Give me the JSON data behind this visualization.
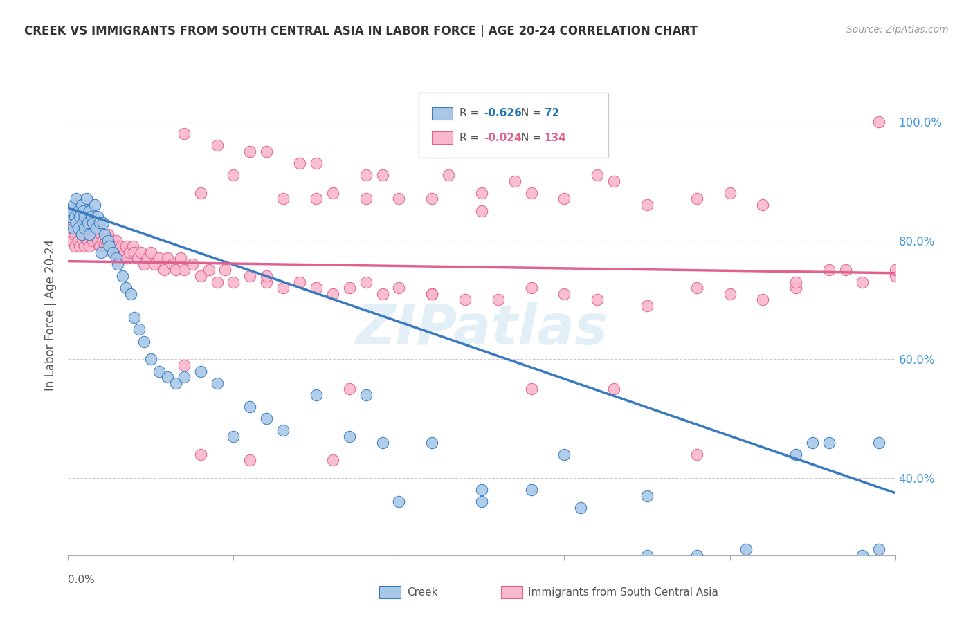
{
  "title": "CREEK VS IMMIGRANTS FROM SOUTH CENTRAL ASIA IN LABOR FORCE | AGE 20-24 CORRELATION CHART",
  "source": "Source: ZipAtlas.com",
  "ylabel": "In Labor Force | Age 20-24",
  "legend_creek_R": "-0.626",
  "legend_creek_N": "72",
  "legend_immig_R": "-0.024",
  "legend_immig_N": "134",
  "creek_color": "#a8c8e8",
  "immig_color": "#f9b8cc",
  "creek_line_color": "#3a7abf",
  "immig_line_color": "#e06090",
  "watermark": "ZIPatlas",
  "background_color": "#ffffff",
  "xlim": [
    0.0,
    0.5
  ],
  "ylim": [
    0.27,
    1.08
  ],
  "creek_x": [
    0.001,
    0.002,
    0.003,
    0.003,
    0.004,
    0.005,
    0.005,
    0.006,
    0.006,
    0.007,
    0.008,
    0.008,
    0.009,
    0.009,
    0.01,
    0.01,
    0.011,
    0.012,
    0.013,
    0.013,
    0.014,
    0.015,
    0.016,
    0.017,
    0.018,
    0.019,
    0.02,
    0.021,
    0.022,
    0.024,
    0.025,
    0.027,
    0.029,
    0.03,
    0.033,
    0.035,
    0.038,
    0.04,
    0.043,
    0.046,
    0.05,
    0.055,
    0.06,
    0.065,
    0.07,
    0.08,
    0.09,
    0.1,
    0.11,
    0.12,
    0.13,
    0.15,
    0.17,
    0.19,
    0.22,
    0.25,
    0.28,
    0.31,
    0.35,
    0.38,
    0.41,
    0.44,
    0.46,
    0.48,
    0.49,
    0.49,
    0.3,
    0.35,
    0.18,
    0.2,
    0.25,
    0.45
  ],
  "creek_y": [
    0.84,
    0.85,
    0.82,
    0.86,
    0.84,
    0.87,
    0.83,
    0.85,
    0.82,
    0.84,
    0.86,
    0.81,
    0.83,
    0.85,
    0.84,
    0.82,
    0.87,
    0.83,
    0.85,
    0.81,
    0.84,
    0.83,
    0.86,
    0.82,
    0.84,
    0.83,
    0.78,
    0.83,
    0.81,
    0.8,
    0.79,
    0.78,
    0.77,
    0.76,
    0.74,
    0.72,
    0.71,
    0.67,
    0.65,
    0.63,
    0.6,
    0.58,
    0.57,
    0.56,
    0.57,
    0.58,
    0.56,
    0.47,
    0.52,
    0.5,
    0.48,
    0.54,
    0.47,
    0.46,
    0.46,
    0.36,
    0.38,
    0.35,
    0.27,
    0.27,
    0.28,
    0.44,
    0.46,
    0.27,
    0.28,
    0.46,
    0.44,
    0.37,
    0.54,
    0.36,
    0.38,
    0.46
  ],
  "immig_x": [
    0.001,
    0.002,
    0.003,
    0.004,
    0.004,
    0.005,
    0.005,
    0.006,
    0.006,
    0.007,
    0.007,
    0.008,
    0.008,
    0.009,
    0.009,
    0.01,
    0.01,
    0.011,
    0.012,
    0.012,
    0.013,
    0.013,
    0.014,
    0.015,
    0.015,
    0.016,
    0.017,
    0.018,
    0.019,
    0.02,
    0.021,
    0.022,
    0.023,
    0.024,
    0.025,
    0.026,
    0.027,
    0.028,
    0.029,
    0.03,
    0.031,
    0.032,
    0.033,
    0.034,
    0.035,
    0.036,
    0.037,
    0.039,
    0.04,
    0.042,
    0.044,
    0.046,
    0.048,
    0.05,
    0.052,
    0.055,
    0.058,
    0.06,
    0.063,
    0.065,
    0.068,
    0.07,
    0.075,
    0.08,
    0.085,
    0.09,
    0.095,
    0.1,
    0.11,
    0.12,
    0.13,
    0.14,
    0.15,
    0.16,
    0.17,
    0.18,
    0.19,
    0.2,
    0.22,
    0.24,
    0.26,
    0.28,
    0.3,
    0.32,
    0.35,
    0.38,
    0.4,
    0.42,
    0.44,
    0.46,
    0.48,
    0.5,
    0.15,
    0.25,
    0.3,
    0.35,
    0.38,
    0.4,
    0.27,
    0.32,
    0.15,
    0.19,
    0.22,
    0.09,
    0.12,
    0.14,
    0.18,
    0.07,
    0.08,
    0.1,
    0.11,
    0.13,
    0.16,
    0.2,
    0.23,
    0.28,
    0.33,
    0.18,
    0.25,
    0.42,
    0.12,
    0.07,
    0.22,
    0.17,
    0.16,
    0.11,
    0.08,
    0.28,
    0.33,
    0.38,
    0.5,
    0.47,
    0.44,
    0.49
  ],
  "immig_y": [
    0.82,
    0.8,
    0.83,
    0.81,
    0.79,
    0.84,
    0.82,
    0.83,
    0.8,
    0.82,
    0.79,
    0.83,
    0.81,
    0.8,
    0.82,
    0.81,
    0.79,
    0.82,
    0.8,
    0.83,
    0.81,
    0.79,
    0.82,
    0.83,
    0.8,
    0.81,
    0.82,
    0.8,
    0.79,
    0.81,
    0.8,
    0.79,
    0.8,
    0.81,
    0.79,
    0.8,
    0.78,
    0.79,
    0.8,
    0.79,
    0.78,
    0.79,
    0.77,
    0.78,
    0.79,
    0.77,
    0.78,
    0.79,
    0.78,
    0.77,
    0.78,
    0.76,
    0.77,
    0.78,
    0.76,
    0.77,
    0.75,
    0.77,
    0.76,
    0.75,
    0.77,
    0.75,
    0.76,
    0.74,
    0.75,
    0.73,
    0.75,
    0.73,
    0.74,
    0.73,
    0.72,
    0.73,
    0.72,
    0.71,
    0.72,
    0.73,
    0.71,
    0.72,
    0.71,
    0.7,
    0.7,
    0.72,
    0.71,
    0.7,
    0.69,
    0.72,
    0.71,
    0.7,
    0.72,
    0.75,
    0.73,
    0.74,
    0.87,
    0.85,
    0.87,
    0.86,
    0.87,
    0.88,
    0.9,
    0.91,
    0.93,
    0.91,
    0.87,
    0.96,
    0.95,
    0.93,
    0.91,
    0.98,
    0.88,
    0.91,
    0.95,
    0.87,
    0.88,
    0.87,
    0.91,
    0.88,
    0.9,
    0.87,
    0.88,
    0.86,
    0.74,
    0.59,
    0.71,
    0.55,
    0.43,
    0.43,
    0.44,
    0.55,
    0.55,
    0.44,
    0.75,
    0.75,
    0.73,
    1.0
  ],
  "creek_trend_x": [
    0.0,
    0.5
  ],
  "creek_trend_y": [
    0.855,
    0.375
  ],
  "immig_trend_x": [
    0.0,
    0.5
  ],
  "immig_trend_y": [
    0.765,
    0.745
  ],
  "ytick_positions": [
    0.4,
    0.6,
    0.8,
    1.0
  ],
  "ytick_labels": [
    "40.0%",
    "60.0%",
    "80.0%",
    "100.0%"
  ]
}
